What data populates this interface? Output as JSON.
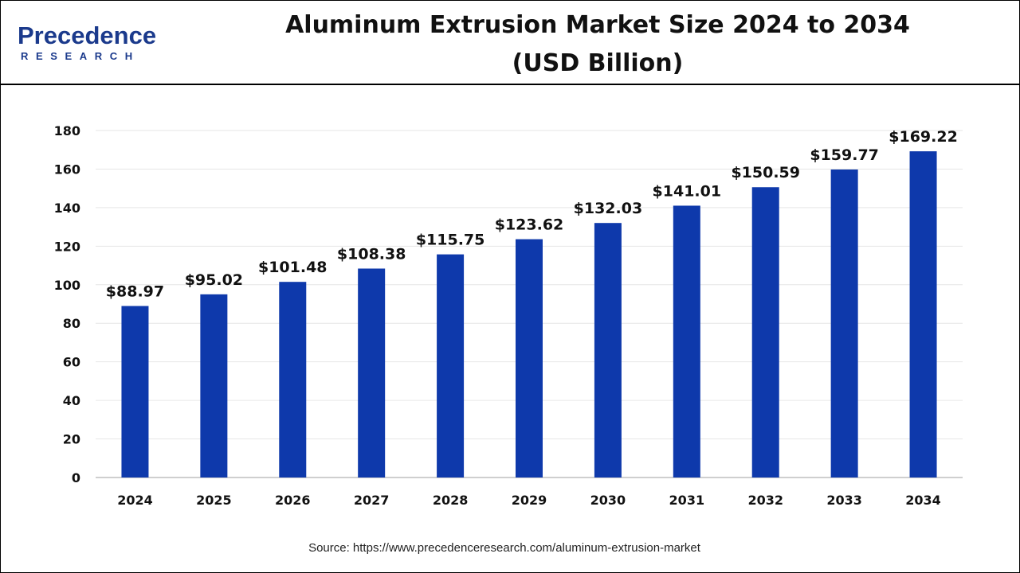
{
  "brand": {
    "logo_word": "Precedence",
    "logo_sub": "RESEARCH",
    "brand_color": "#1b3a8c"
  },
  "title_line1": "Aluminum Extrusion Market Size 2024 to 2034",
  "title_line2": "(USD Billion)",
  "source": "Source: https://www.precedenceresearch.com/aluminum-extrusion-market",
  "chart_data": {
    "type": "bar",
    "title": "Aluminum Extrusion Market Size 2024 to 2034 (USD Billion)",
    "categories": [
      "2024",
      "2025",
      "2026",
      "2027",
      "2028",
      "2029",
      "2030",
      "2031",
      "2032",
      "2033",
      "2034"
    ],
    "values": [
      88.97,
      95.02,
      101.48,
      108.38,
      115.75,
      123.62,
      132.03,
      141.01,
      150.59,
      159.77,
      169.22
    ],
    "data_labels": [
      "$88.97",
      "$95.02",
      "$101.48",
      "$108.38",
      "$115.75",
      "$123.62",
      "$132.03",
      "$141.01",
      "$150.59",
      "$159.77",
      "$169.22"
    ],
    "yticks": [
      0,
      20,
      40,
      60,
      80,
      100,
      120,
      140,
      160,
      180
    ],
    "ylim": [
      0,
      180
    ],
    "xlabel": "",
    "ylabel": "",
    "grid": true,
    "legend": "none",
    "bar_color": "#0e39ab"
  }
}
